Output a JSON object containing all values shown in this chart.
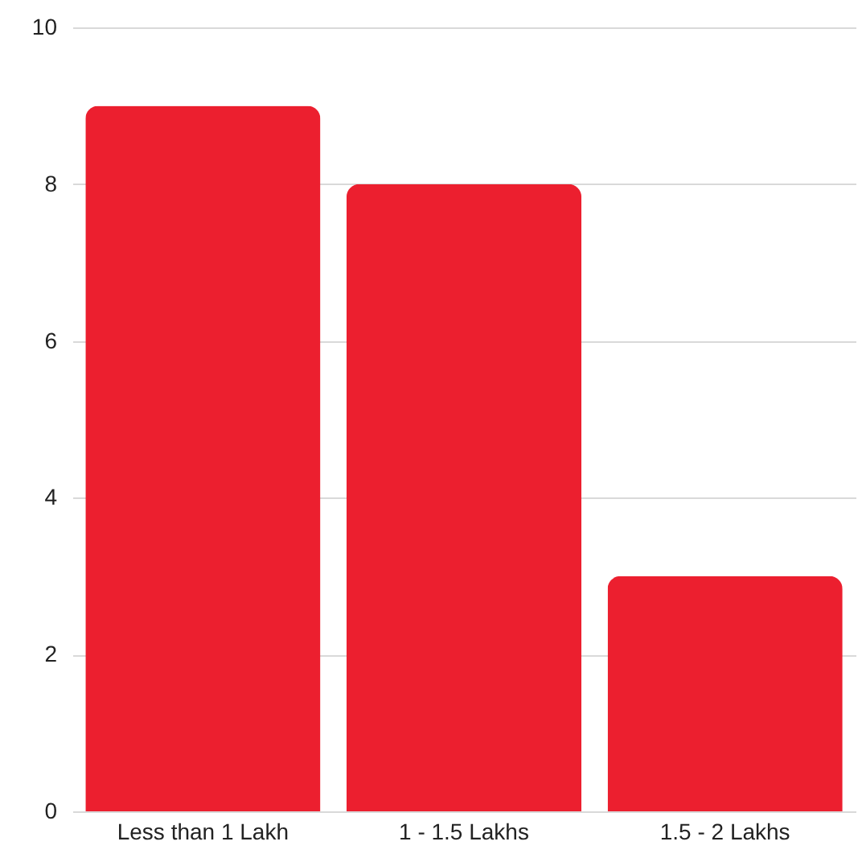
{
  "chart_data": {
    "type": "bar",
    "categories": [
      "Less than 1 Lakh",
      "1 - 1.5 Lakhs",
      "1.5 - 2 Lakhs"
    ],
    "values": [
      9,
      8,
      3
    ],
    "color": "#ec1f2f",
    "ylim": [
      0,
      10
    ],
    "yticks": [
      0,
      2,
      4,
      6,
      8,
      10
    ],
    "grid": "y"
  }
}
